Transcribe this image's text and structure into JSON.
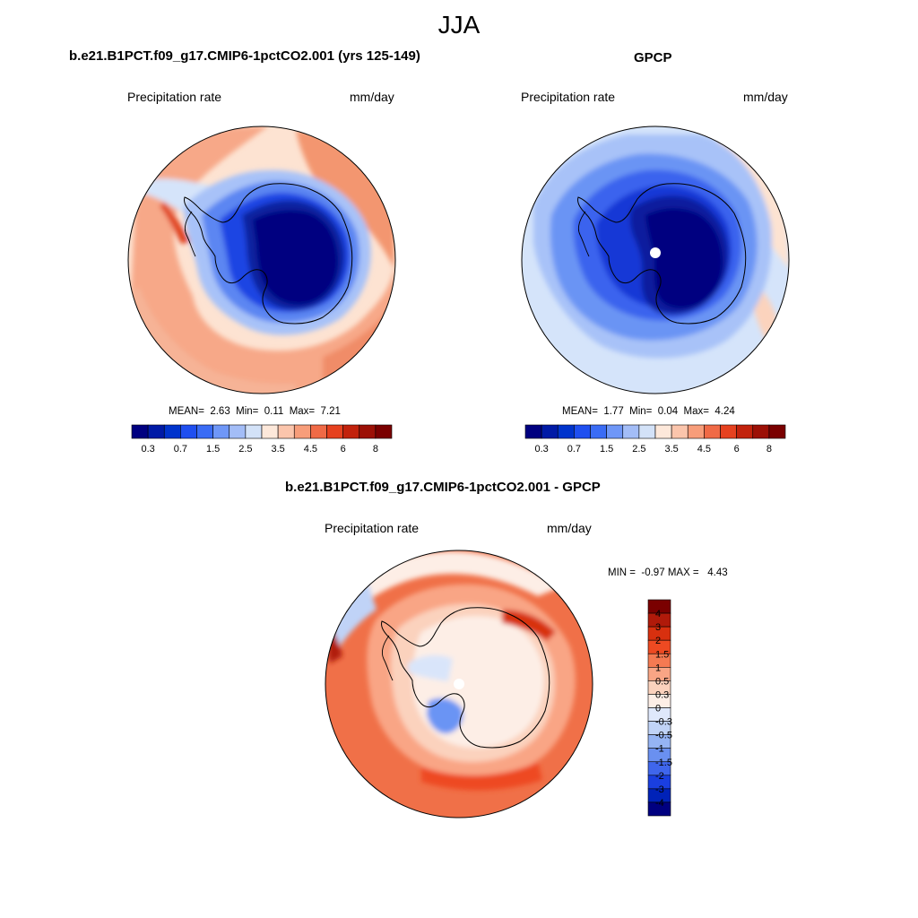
{
  "figure": {
    "title": "JJA"
  },
  "panels": [
    {
      "title": "b.e21.B1PCT.f09_g17.CMIP6-1pctCO2.001 (yrs 125-149)",
      "left_label": "Precipitation rate",
      "right_label": "mm/day",
      "stats": {
        "mean_label": "MEAN=",
        "mean": "2.63",
        "min_label": "Min=",
        "min": "0.11",
        "max_label": "Max=",
        "max": "7.21"
      }
    },
    {
      "title": "GPCP",
      "left_label": "Precipitation rate",
      "right_label": "mm/day",
      "stats": {
        "mean_label": "MEAN=",
        "mean": "1.77",
        "min_label": "Min=",
        "min": "0.04",
        "max_label": "Max=",
        "max": "4.24"
      }
    },
    {
      "title": "b.e21.B1PCT.f09_g17.CMIP6-1pctCO2.001 - GPCP",
      "left_label": "Precipitation rate",
      "right_label": "mm/day",
      "stats": {
        "min_label": "MIN =",
        "min": "-0.97",
        "max_label": "MAX =",
        "max": "4.43"
      }
    }
  ],
  "chart_data": [
    {
      "type": "heatmap",
      "projection": "south-polar-stereographic",
      "title": "b.e21.B1PCT.f09_g17.CMIP6-1pctCO2.001 (yrs 125-149)",
      "variable": "Precipitation rate",
      "units": "mm/day",
      "mean": 2.63,
      "min": 0.11,
      "max": 7.21,
      "colorbar": {
        "orientation": "horizontal",
        "levels": [
          0.3,
          0.5,
          0.7,
          1,
          1.5,
          2,
          2.5,
          3,
          3.5,
          4,
          4.5,
          5,
          6,
          7,
          8
        ],
        "tick_labels": [
          "0.3",
          "0.7",
          "1.5",
          "2.5",
          "3.5",
          "4.5",
          "6",
          "8"
        ],
        "colors": [
          "#000080",
          "#001aa6",
          "#0033cc",
          "#1f4ff0",
          "#3a6cf5",
          "#6f97f7",
          "#a3bdf7",
          "#d3e2f8",
          "#fde8da",
          "#fbc5ac",
          "#f79d7a",
          "#f06a46",
          "#e6411f",
          "#c2220c",
          "#9c1006",
          "#7a0000"
        ]
      }
    },
    {
      "type": "heatmap",
      "projection": "south-polar-stereographic",
      "title": "GPCP",
      "variable": "Precipitation rate",
      "units": "mm/day",
      "mean": 1.77,
      "min": 0.04,
      "max": 4.24,
      "colorbar": {
        "orientation": "horizontal",
        "levels": [
          0.3,
          0.5,
          0.7,
          1,
          1.5,
          2,
          2.5,
          3,
          3.5,
          4,
          4.5,
          5,
          6,
          7,
          8
        ],
        "tick_labels": [
          "0.3",
          "0.7",
          "1.5",
          "2.5",
          "3.5",
          "4.5",
          "6",
          "8"
        ],
        "colors": [
          "#000080",
          "#001aa6",
          "#0033cc",
          "#1f4ff0",
          "#3a6cf5",
          "#6f97f7",
          "#a3bdf7",
          "#d3e2f8",
          "#fde8da",
          "#fbc5ac",
          "#f79d7a",
          "#f06a46",
          "#e6411f",
          "#c2220c",
          "#9c1006",
          "#7a0000"
        ]
      }
    },
    {
      "type": "heatmap",
      "projection": "south-polar-stereographic",
      "title": "b.e21.B1PCT.f09_g17.CMIP6-1pctCO2.001 - GPCP",
      "variable": "Precipitation rate",
      "units": "mm/day",
      "min": -0.97,
      "max": 4.43,
      "colorbar": {
        "orientation": "vertical",
        "levels": [
          -4,
          -3,
          -2,
          -1.5,
          -1,
          -0.5,
          -0.3,
          0,
          0.3,
          0.5,
          1,
          1.5,
          2,
          3,
          4
        ],
        "tick_labels": [
          "4",
          "3",
          "2",
          "1.5",
          "1",
          "0.5",
          "0.3",
          "0",
          "-0.3",
          "-0.5",
          "-1",
          "-1.5",
          "-2",
          "-3",
          "-4"
        ],
        "colors_top_to_bottom": [
          "#7a0000",
          "#b01a0a",
          "#d8300f",
          "#ee4a22",
          "#f57a52",
          "#f9a585",
          "#fbd2bd",
          "#fdeee6",
          "#dfe8fb",
          "#c0d3f7",
          "#95b4f4",
          "#6a90f0",
          "#3f66ec",
          "#1a3fe0",
          "#0022b8",
          "#000080"
        ]
      }
    }
  ]
}
